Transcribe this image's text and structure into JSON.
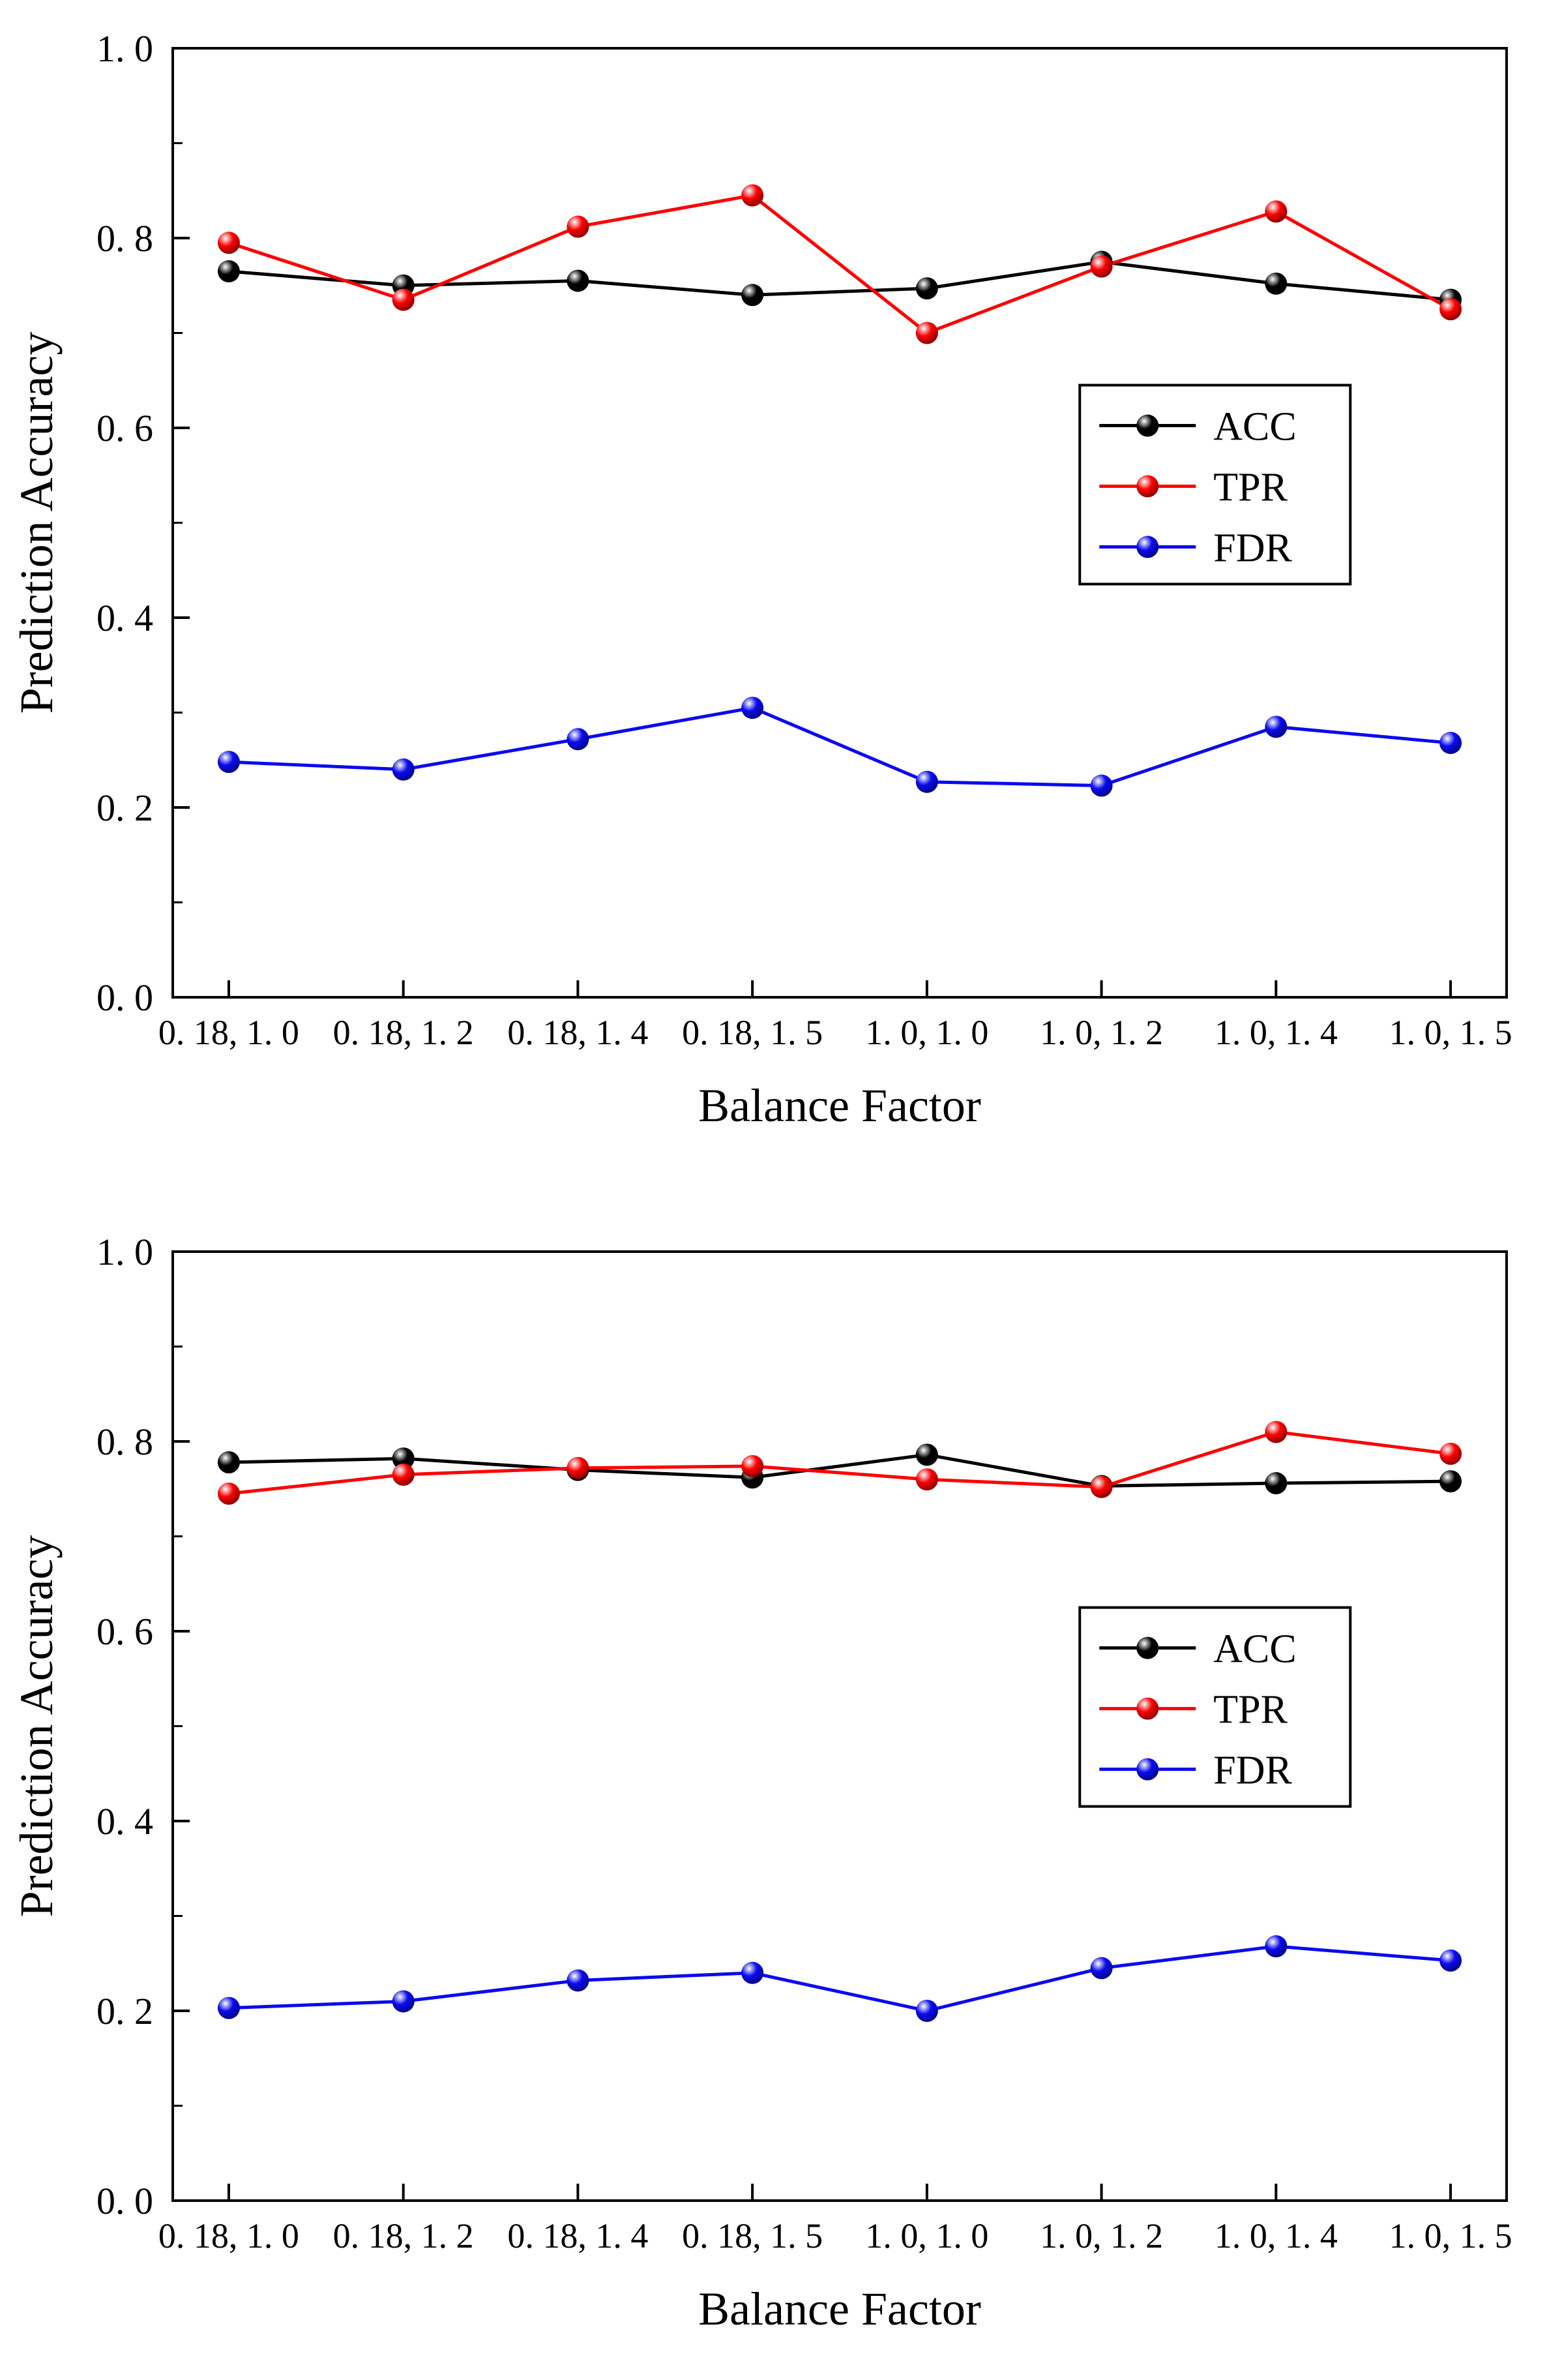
{
  "figure_title": "",
  "accent_colors": {
    "acc": "#000000",
    "tpr": "#fe0000",
    "fdr": "#0a0af0"
  },
  "chart_data": [
    {
      "type": "line",
      "title": "",
      "xlabel": "Balance Factor",
      "ylabel": "Prediction Accuracy",
      "ylim": [
        0.0,
        1.0
      ],
      "grid": false,
      "legend_position": "center-right",
      "legend_pos": {
        "x": 0.68,
        "y": 0.355
      },
      "categories": [
        "0. 18, 1. 0",
        "0. 18, 1. 2",
        "0. 18, 1. 4",
        "0. 18, 1. 5",
        "1. 0, 1. 0",
        "1. 0, 1. 2",
        "1. 0, 1. 4",
        "1. 0, 1. 5"
      ],
      "yticks": [
        {
          "v": 0.0,
          "label": "0. 0"
        },
        {
          "v": 0.2,
          "label": "0. 2"
        },
        {
          "v": 0.4,
          "label": "0. 4"
        },
        {
          "v": 0.6,
          "label": "0. 6"
        },
        {
          "v": 0.8,
          "label": "0. 8"
        },
        {
          "v": 1.0,
          "label": "1. 0"
        }
      ],
      "series": [
        {
          "name": "ACC",
          "color": "#000000",
          "values": [
            0.765,
            0.75,
            0.755,
            0.74,
            0.747,
            0.775,
            0.752,
            0.735
          ]
        },
        {
          "name": "TPR",
          "color": "#fe0000",
          "values": [
            0.795,
            0.735,
            0.812,
            0.845,
            0.7,
            0.77,
            0.828,
            0.725
          ]
        },
        {
          "name": "FDR",
          "color": "#0a0af0",
          "values": [
            0.248,
            0.24,
            0.272,
            0.305,
            0.227,
            0.223,
            0.285,
            0.268
          ]
        }
      ]
    },
    {
      "type": "line",
      "title": "",
      "xlabel": "Balance Factor",
      "ylabel": "Prediction Accuracy",
      "ylim": [
        0.0,
        1.0
      ],
      "grid": false,
      "legend_position": "center-right",
      "legend_pos": {
        "x": 0.68,
        "y": 0.375
      },
      "categories": [
        "0. 18, 1. 0",
        "0. 18, 1. 2",
        "0. 18, 1. 4",
        "0. 18, 1. 5",
        "1. 0, 1. 0",
        "1. 0, 1. 2",
        "1. 0, 1. 4",
        "1. 0, 1. 5"
      ],
      "yticks": [
        {
          "v": 0.0,
          "label": "0. 0"
        },
        {
          "v": 0.2,
          "label": "0. 2"
        },
        {
          "v": 0.4,
          "label": "0. 4"
        },
        {
          "v": 0.6,
          "label": "0. 6"
        },
        {
          "v": 0.8,
          "label": "0. 8"
        },
        {
          "v": 1.0,
          "label": "1. 0"
        }
      ],
      "series": [
        {
          "name": "ACC",
          "color": "#000000",
          "values": [
            0.778,
            0.782,
            0.77,
            0.762,
            0.786,
            0.753,
            0.756,
            0.758
          ]
        },
        {
          "name": "TPR",
          "color": "#fe0000",
          "values": [
            0.745,
            0.765,
            0.772,
            0.774,
            0.76,
            0.752,
            0.81,
            0.787
          ]
        },
        {
          "name": "FDR",
          "color": "#0a0af0",
          "values": [
            0.203,
            0.21,
            0.232,
            0.24,
            0.2,
            0.245,
            0.268,
            0.253
          ]
        }
      ]
    }
  ]
}
